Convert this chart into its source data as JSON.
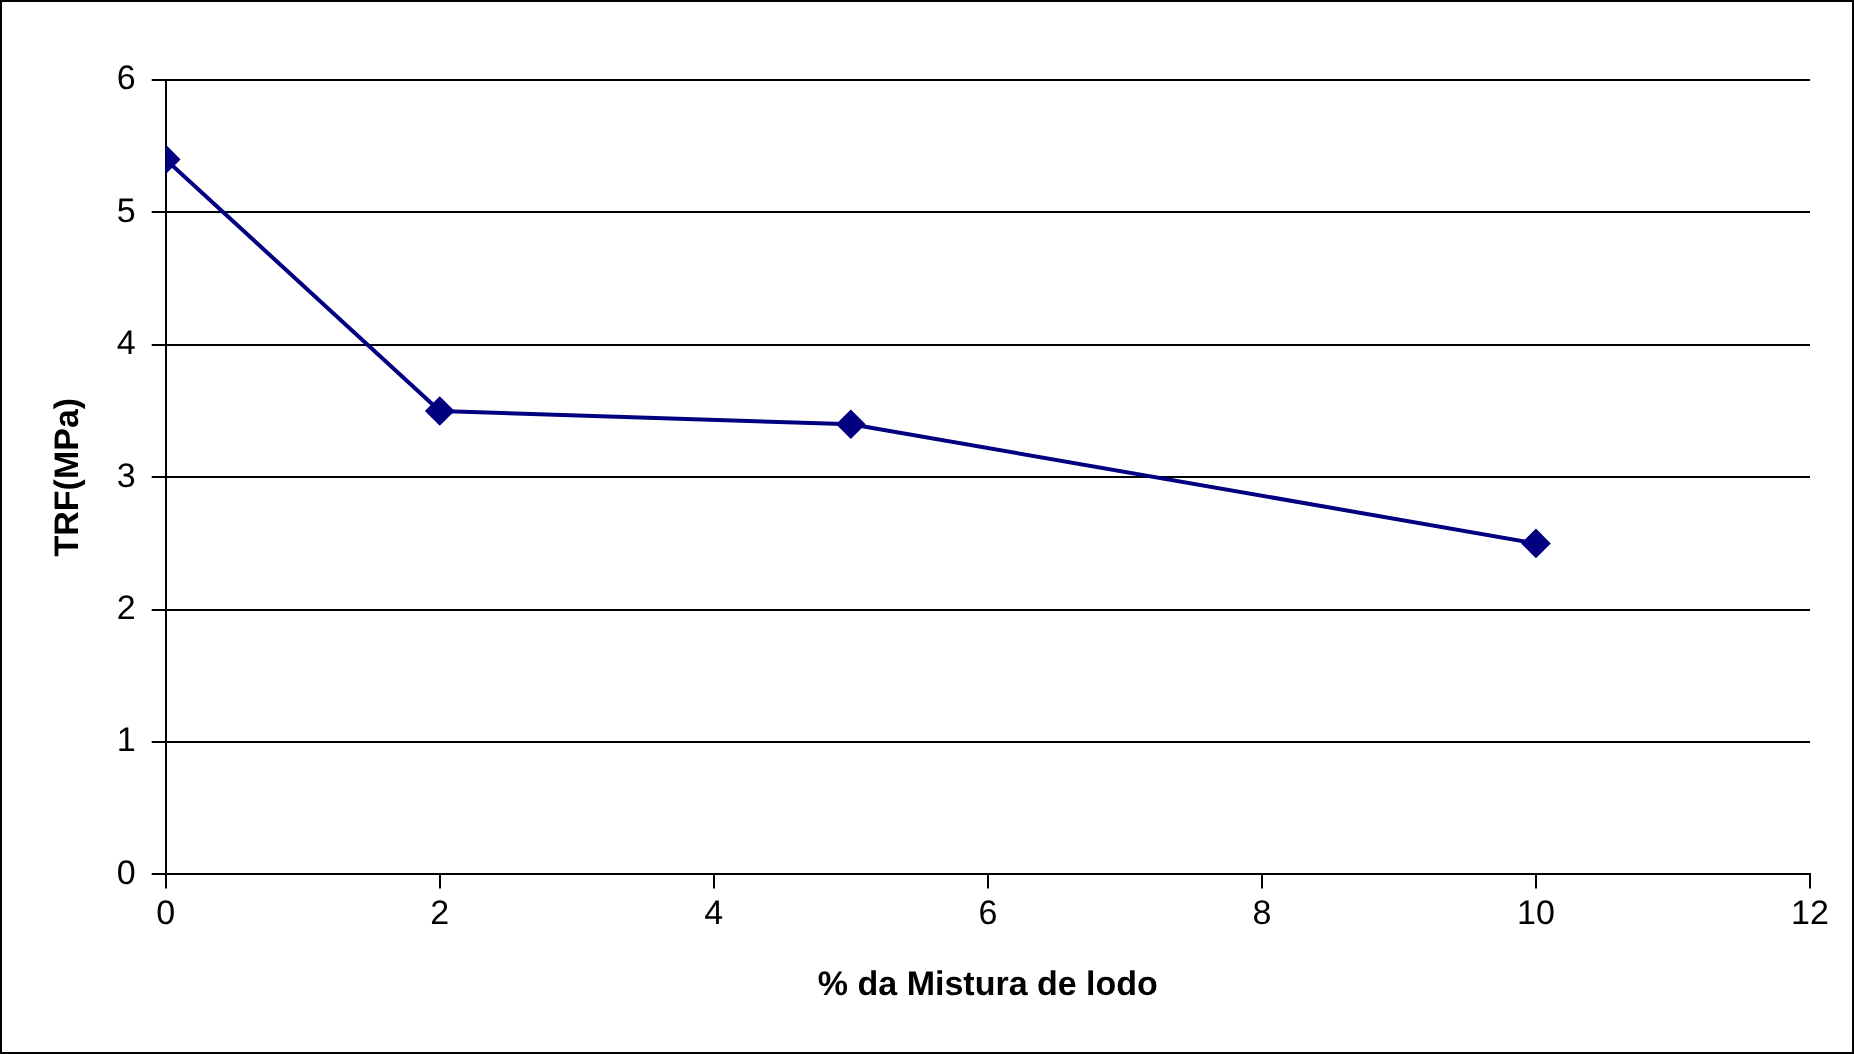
{
  "chart_data": {
    "type": "line",
    "xlabel": "% da Mistura de lodo",
    "ylabel": "TRF(MPa)",
    "x": [
      0,
      2,
      5,
      10
    ],
    "series": [
      {
        "color": "#000080",
        "values": [
          5.4,
          3.5,
          3.4,
          2.5
        ]
      }
    ],
    "xlim": [
      0,
      12
    ],
    "xticks": [
      0,
      2,
      4,
      6,
      8,
      10,
      12
    ],
    "ylim": [
      0,
      6
    ],
    "yticks": [
      0,
      1,
      2,
      3,
      4,
      5,
      6
    ],
    "grid": "y",
    "legend": false,
    "marker": "diamond",
    "line_style": "solid"
  }
}
